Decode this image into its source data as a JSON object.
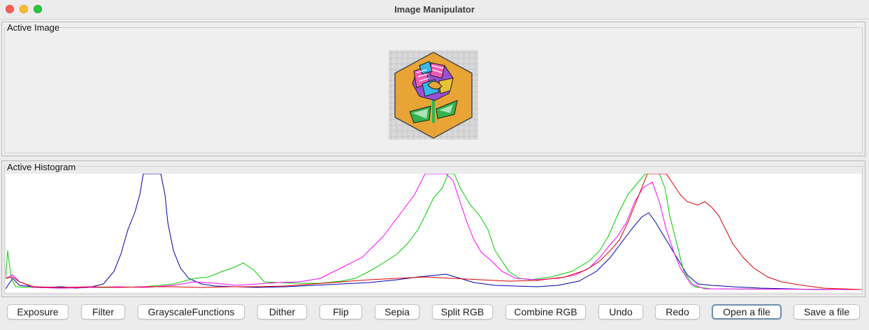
{
  "window": {
    "title": "Image Manipulator",
    "traffic_lights": [
      "close-red",
      "minimize-yellow",
      "zoom-green"
    ]
  },
  "image_panel": {
    "label": "Active Image",
    "thumbnail": {
      "description_colors": [
        "#e8a536",
        "#9b4fd6",
        "#f05bb4",
        "#35b7e8",
        "#31b44b"
      ]
    }
  },
  "histogram_panel": {
    "label": "Active Histogram",
    "series_colors": {
      "red": "#ff0000",
      "green": "#00cc00",
      "blue": "#0000aa",
      "magenta": "#ff00ff"
    }
  },
  "buttons": [
    {
      "id": "exposure",
      "label": "Exposure"
    },
    {
      "id": "filter",
      "label": "Filter"
    },
    {
      "id": "grayscale",
      "label": "GrayscaleFunctions"
    },
    {
      "id": "dither",
      "label": "Dither"
    },
    {
      "id": "flip",
      "label": "Flip"
    },
    {
      "id": "sepia",
      "label": "Sepia"
    },
    {
      "id": "split-rgb",
      "label": "Split RGB"
    },
    {
      "id": "combine-rgb",
      "label": "Combine RGB"
    },
    {
      "id": "undo",
      "label": "Undo"
    },
    {
      "id": "redo",
      "label": "Redo"
    },
    {
      "id": "open-file",
      "label": "Open a file",
      "focused": true
    },
    {
      "id": "save-file",
      "label": "Save a file"
    }
  ]
}
